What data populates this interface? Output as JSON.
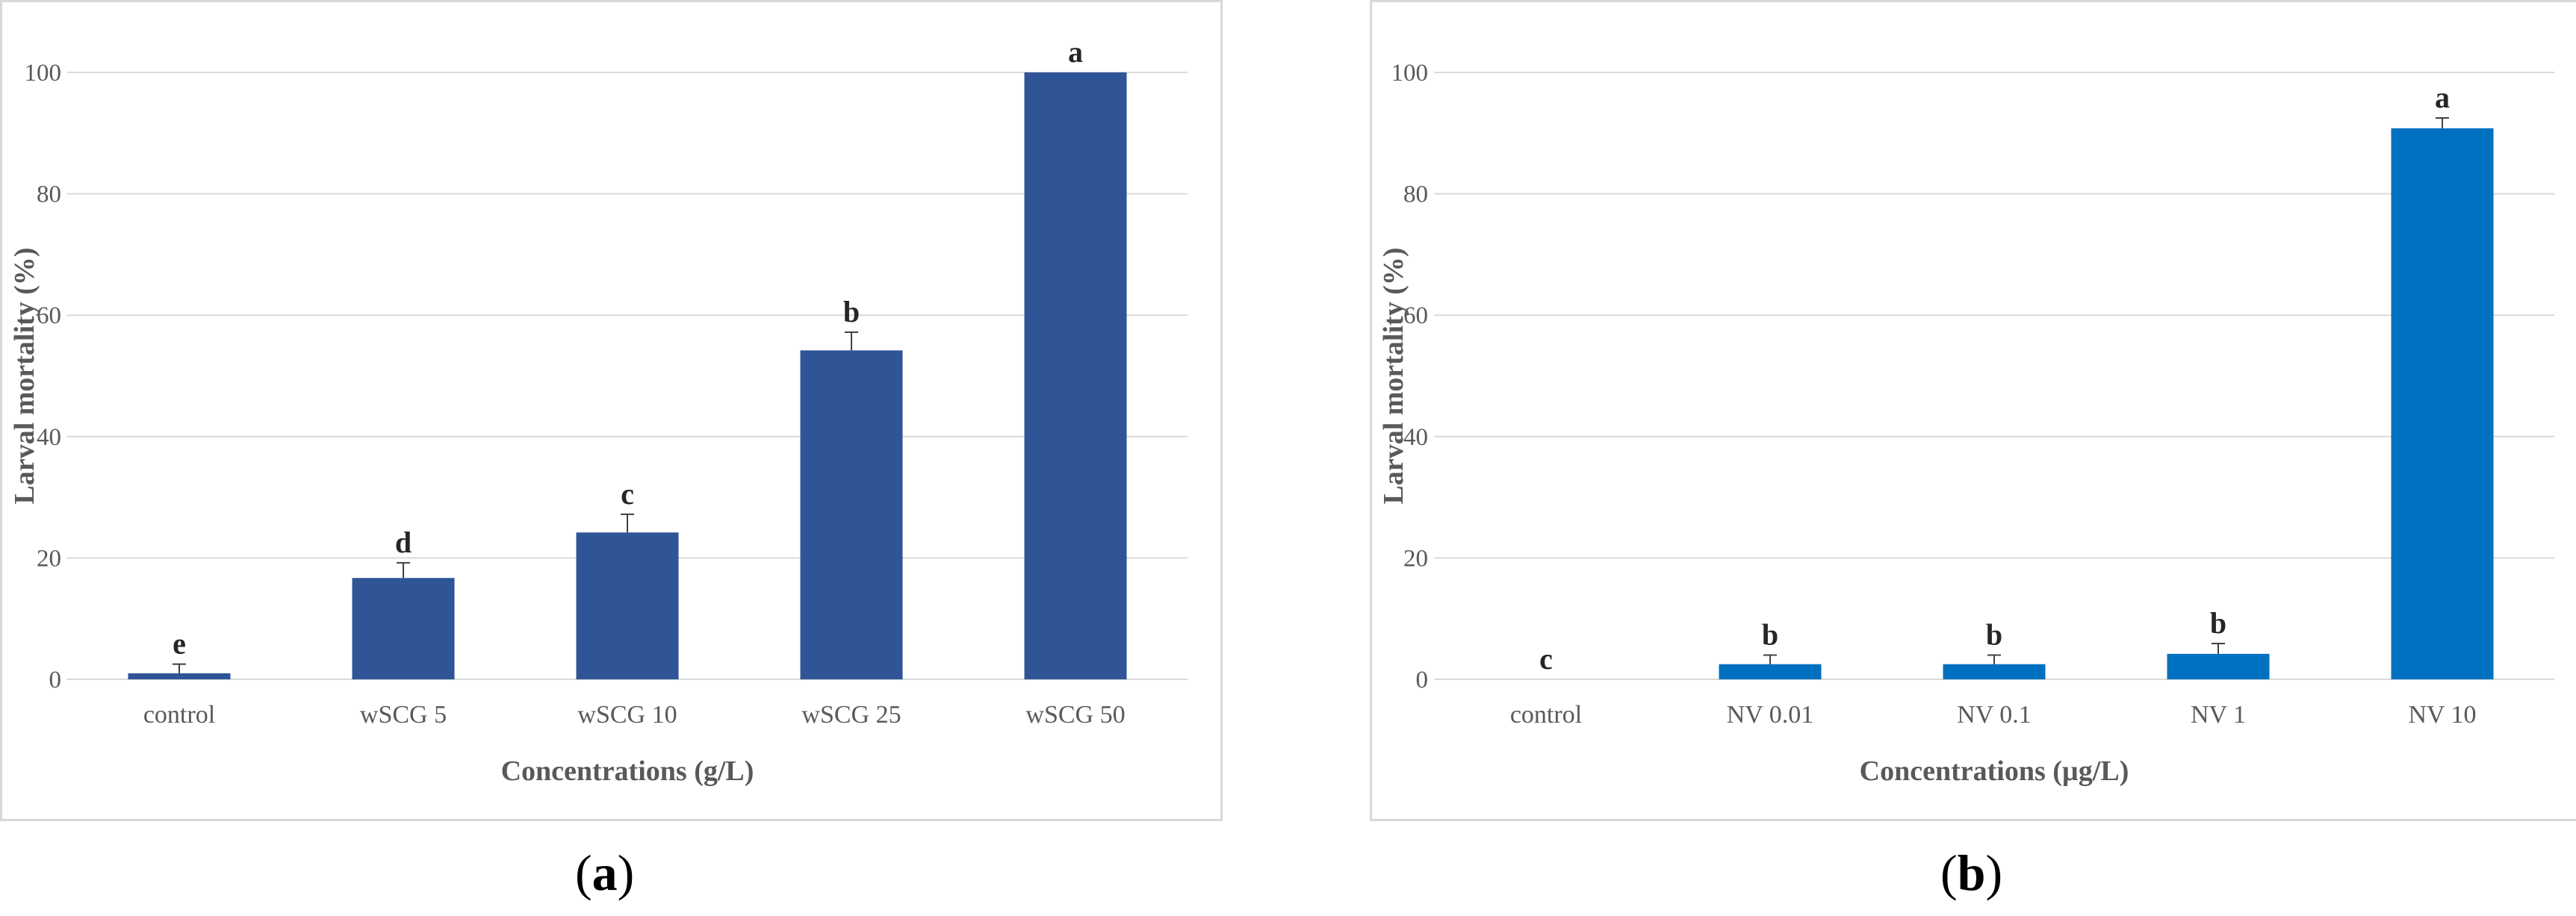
{
  "panels": [
    {
      "label": "a",
      "chart_data": {
        "type": "bar",
        "categories": [
          "control",
          "wSCG 5",
          "wSCG 10",
          "wSCG 25",
          "wSCG 50"
        ],
        "values": [
          1,
          16.7,
          24.2,
          54.2,
          100
        ],
        "errors": [
          1.5,
          2.5,
          3.0,
          3.0,
          0
        ],
        "significance": [
          "e",
          "d",
          "c",
          "b",
          "a"
        ],
        "xlabel": "Concentrations (g/L)",
        "ylabel": "Larval mortality (%)",
        "ylim": [
          0,
          100
        ],
        "yticks": [
          0,
          20,
          40,
          60,
          80,
          100
        ],
        "grid": true,
        "bar_color": "#2f5597"
      }
    },
    {
      "label": "b",
      "chart_data": {
        "type": "bar",
        "categories": [
          "control",
          "NV 0.01",
          "NV 0.1",
          "NV 1",
          "NV 10"
        ],
        "values": [
          0,
          2.5,
          2.5,
          4.2,
          90.8
        ],
        "errors": [
          0,
          1.5,
          1.5,
          1.7,
          1.7
        ],
        "significance": [
          "c",
          "b",
          "b",
          "b",
          "a"
        ],
        "xlabel": "Concentrations (µg/L)",
        "ylabel": "Larval mortality (%)",
        "ylim": [
          0,
          100
        ],
        "yticks": [
          0,
          20,
          40,
          60,
          80,
          100
        ],
        "grid": true,
        "bar_color": "#0070c0"
      }
    }
  ]
}
